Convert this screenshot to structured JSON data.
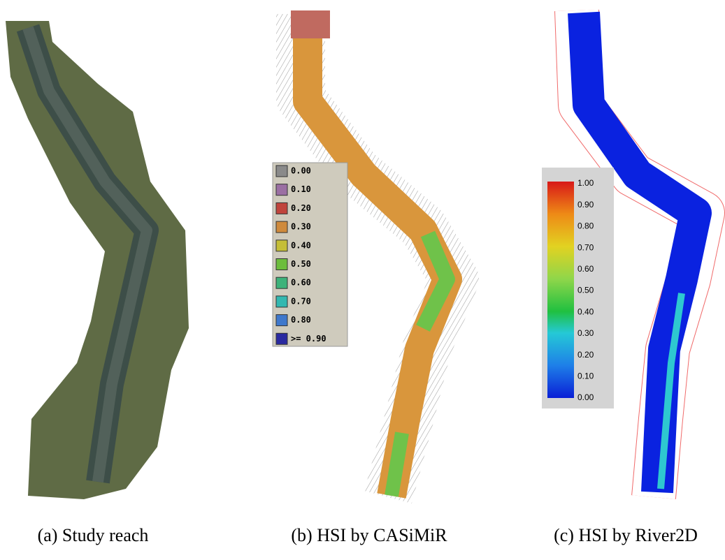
{
  "panels": [
    {
      "caption": "(a) Study reach"
    },
    {
      "caption": "(b) HSI by CASiMiR",
      "legend": [
        "0.00",
        "0.10",
        "0.20",
        "0.30",
        "0.40",
        "0.50",
        "0.60",
        "0.70",
        "0.80",
        ">= 0.90"
      ]
    },
    {
      "caption": "(c) HSI by River2D",
      "legend": [
        "1.00",
        "0.90",
        "0.80",
        "0.70",
        "0.60",
        "0.50",
        "0.40",
        "0.30",
        "0.20",
        "0.10",
        "0.00"
      ]
    }
  ]
}
